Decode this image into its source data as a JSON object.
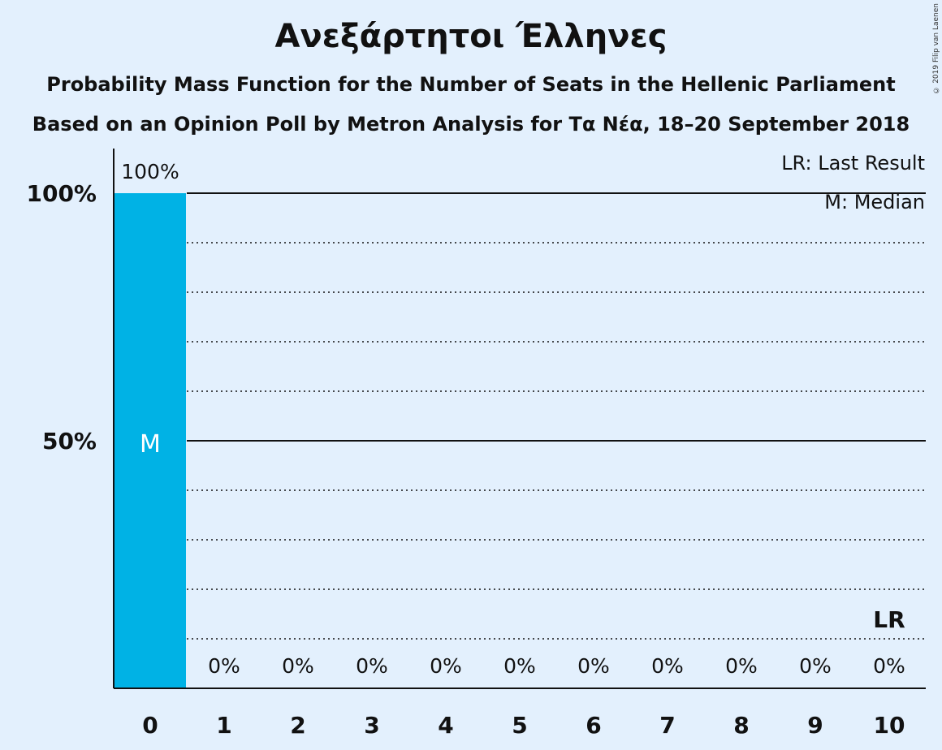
{
  "chart_data": {
    "type": "bar",
    "title": "Ανεξάρτητοι Έλληνες",
    "subtitle": "Probability Mass Function for the Number of Seats in the Hellenic Parliament",
    "subtitle2": "Based on an Opinion Poll by Metron Analysis for Τα Νέα, 18–20 September 2018",
    "categories": [
      "0",
      "1",
      "2",
      "3",
      "4",
      "5",
      "6",
      "7",
      "8",
      "9",
      "10"
    ],
    "values": [
      100,
      0,
      0,
      0,
      0,
      0,
      0,
      0,
      0,
      0,
      0
    ],
    "value_labels": [
      "100%",
      "0%",
      "0%",
      "0%",
      "0%",
      "0%",
      "0%",
      "0%",
      "0%",
      "0%",
      "0%"
    ],
    "ylim": [
      0,
      110
    ],
    "yticks": [
      {
        "value": 50,
        "label": "50%"
      },
      {
        "value": 100,
        "label": "100%"
      }
    ],
    "gridlines_dotted": [
      10,
      20,
      30,
      40,
      60,
      70,
      80,
      90
    ],
    "median_index": 0,
    "median_marker": "M",
    "last_result_index": 10,
    "last_result_marker": "LR",
    "legend": {
      "last_result": "LR: Last Result",
      "median": "M: Median",
      "placement": "top-right"
    },
    "bar_color": "#00b2e5"
  },
  "copyright": "© 2019 Filip van Laenen"
}
